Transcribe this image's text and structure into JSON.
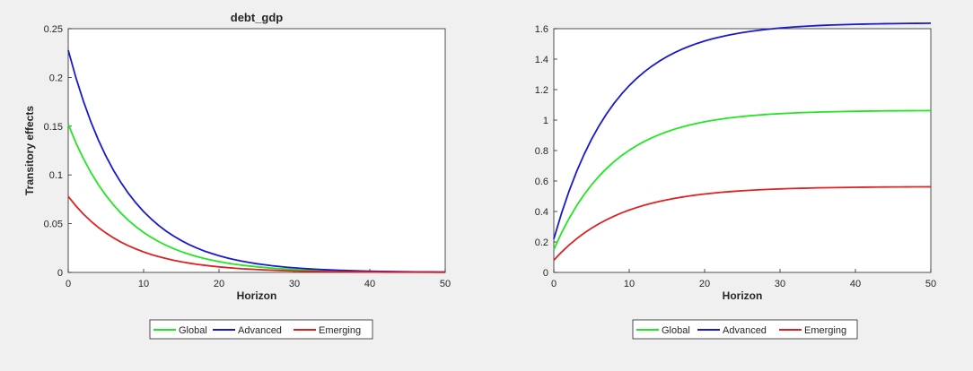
{
  "figure": {
    "background": "#f0f0f0",
    "panel_background": "#ffffff"
  },
  "legend_entries": [
    {
      "label": "Global",
      "color": "#22e622"
    },
    {
      "label": "Advanced",
      "color": "#1a1acc"
    },
    {
      "label": "Emerging",
      "color": "#dd2222"
    }
  ],
  "chart_data": [
    {
      "type": "line",
      "title": "debt_gdp",
      "xlabel": "Horizon",
      "ylabel": "Transitory effects",
      "xlim": [
        0,
        50
      ],
      "ylim": [
        0,
        0.25
      ],
      "xticks": [
        0,
        10,
        20,
        30,
        40,
        50
      ],
      "yticks": [
        0,
        0.05,
        0.1,
        0.15,
        0.2,
        0.25
      ],
      "ytick_labels": [
        "0",
        "0.05",
        "0.1",
        "0.15",
        "0.2",
        "0.25"
      ],
      "legend_position": "bottom",
      "x": [
        0,
        1,
        2,
        3,
        4,
        5,
        6,
        7,
        8,
        9,
        10,
        11,
        12,
        13,
        14,
        15,
        16,
        17,
        18,
        19,
        20,
        21,
        22,
        23,
        24,
        25,
        26,
        27,
        28,
        29,
        30,
        31,
        32,
        33,
        34,
        35,
        36,
        37,
        38,
        39,
        40,
        41,
        42,
        43,
        44,
        45,
        46,
        47,
        48,
        49,
        50
      ],
      "series": [
        {
          "name": "Global",
          "color": "#22e622",
          "values": [
            0.152,
            0.1333,
            0.117,
            0.1026,
            0.09,
            0.079,
            0.0693,
            0.0608,
            0.0533,
            0.0468,
            0.041,
            0.036,
            0.0316,
            0.0277,
            0.0243,
            0.0213,
            0.0187,
            0.0164,
            0.0144,
            0.0126,
            0.0111,
            0.0097,
            0.0085,
            0.0075,
            0.0066,
            0.0058,
            0.0051,
            0.0044,
            0.0039,
            0.0034,
            0.003,
            0.0026,
            0.0023,
            0.002,
            0.0018,
            0.0016,
            0.0014,
            0.0012,
            0.0011,
            0.0009,
            0.0008,
            0.0007,
            0.0006,
            0.0006,
            0.0005,
            0.0004,
            0.0004,
            0.0003,
            0.0003,
            0.0003,
            0.0002
          ]
        },
        {
          "name": "Advanced",
          "color": "#1a1acc",
          "values": [
            0.228,
            0.2003,
            0.176,
            0.1546,
            0.1358,
            0.1193,
            0.1048,
            0.0921,
            0.0809,
            0.0711,
            0.0624,
            0.0549,
            0.0482,
            0.0423,
            0.0372,
            0.0327,
            0.0287,
            0.0252,
            0.0221,
            0.0195,
            0.0171,
            0.015,
            0.0132,
            0.0116,
            0.0102,
            0.0089,
            0.0079,
            0.0069,
            0.0061,
            0.0053,
            0.0047,
            0.0041,
            0.0036,
            0.0032,
            0.0028,
            0.0025,
            0.0022,
            0.0019,
            0.0017,
            0.0015,
            0.0013,
            0.0011,
            0.001,
            0.0009,
            0.0008,
            0.0007,
            0.0006,
            0.0005,
            0.0005,
            0.0004,
            0.0004
          ]
        },
        {
          "name": "Emerging",
          "color": "#dd2222",
          "values": [
            0.078,
            0.0684,
            0.06,
            0.0526,
            0.0461,
            0.0405,
            0.0355,
            0.0311,
            0.0273,
            0.024,
            0.021,
            0.0184,
            0.0162,
            0.0142,
            0.0124,
            0.0109,
            0.0096,
            0.0084,
            0.0074,
            0.0065,
            0.0057,
            0.005,
            0.0044,
            0.0038,
            0.0034,
            0.003,
            0.0026,
            0.0023,
            0.002,
            0.0017,
            0.0015,
            0.0013,
            0.0012,
            0.001,
            0.0009,
            0.0008,
            0.0007,
            0.0006,
            0.0005,
            0.0005,
            0.0004,
            0.0004,
            0.0003,
            0.0003,
            0.0003,
            0.0002,
            0.0002,
            0.0002,
            0.0002,
            0.0001,
            0.0001
          ]
        }
      ]
    },
    {
      "type": "line",
      "title": "",
      "xlabel": "Horizon",
      "ylabel": "",
      "xlim": [
        0,
        50
      ],
      "ylim": [
        0,
        1.6
      ],
      "xticks": [
        0,
        10,
        20,
        30,
        40,
        50
      ],
      "yticks": [
        0,
        0.2,
        0.4,
        0.6,
        0.8,
        1,
        1.2,
        1.4,
        1.6
      ],
      "ytick_labels": [
        "0",
        "0.2",
        "0.4",
        "0.6",
        "0.8",
        "1",
        "1.2",
        "1.4",
        "1.6"
      ],
      "legend_position": "bottom",
      "x": [
        0,
        1,
        2,
        3,
        4,
        5,
        6,
        7,
        8,
        9,
        10,
        11,
        12,
        13,
        14,
        15,
        16,
        17,
        18,
        19,
        20,
        21,
        22,
        23,
        24,
        25,
        26,
        27,
        28,
        29,
        30,
        31,
        32,
        33,
        34,
        35,
        36,
        37,
        38,
        39,
        40,
        41,
        42,
        43,
        44,
        45,
        46,
        47,
        48,
        49,
        50
      ],
      "series": [
        {
          "name": "Global",
          "color": "#22e622",
          "values": [
            0.15,
            0.2574,
            0.3521,
            0.4357,
            0.5095,
            0.5746,
            0.632,
            0.6827,
            0.7274,
            0.767,
            0.8018,
            0.8326,
            0.8598,
            0.8837,
            0.9049,
            0.9236,
            0.9401,
            0.9546,
            0.9675,
            0.9788,
            0.9888,
            0.9976,
            1.0054,
            1.0123,
            1.0183,
            1.0237,
            1.0284,
            1.0326,
            1.0363,
            1.0395,
            1.0424,
            1.0449,
            1.0471,
            1.0491,
            1.0508,
            1.0524,
            1.0537,
            1.0549,
            1.056,
            1.0569,
            1.0577,
            1.0584,
            1.0591,
            1.0596,
            1.0601,
            1.0606,
            1.061,
            1.0613,
            1.0616,
            1.0619,
            1.062
          ]
        },
        {
          "name": "Advanced",
          "color": "#1a1acc",
          "values": [
            0.22,
            0.3848,
            0.5306,
            0.6594,
            0.7732,
            0.8738,
            0.9627,
            1.0412,
            1.1106,
            1.172,
            1.2262,
            1.2741,
            1.3165,
            1.354,
            1.3871,
            1.4163,
            1.4422,
            1.4651,
            1.4853,
            1.5032,
            1.5189,
            1.5329,
            1.5452,
            1.5561,
            1.5657,
            1.5742,
            1.5817,
            1.5884,
            1.5943,
            1.5994,
            1.604,
            1.6081,
            1.6117,
            1.6148,
            1.6176,
            1.6201,
            1.6223,
            1.6242,
            1.6259,
            1.6274,
            1.6287,
            1.6299,
            1.6309,
            1.6318,
            1.6326,
            1.6333,
            1.634,
            1.6345,
            1.635,
            1.6354,
            1.6358
          ]
        },
        {
          "name": "Emerging",
          "color": "#dd2222",
          "values": [
            0.08,
            0.1321,
            0.1787,
            0.2202,
            0.2573,
            0.2904,
            0.3199,
            0.3462,
            0.3697,
            0.3907,
            0.4094,
            0.4261,
            0.441,
            0.4543,
            0.4661,
            0.4767,
            0.4861,
            0.4945,
            0.502,
            0.5087,
            0.5147,
            0.52,
            0.5248,
            0.529,
            0.5328,
            0.5361,
            0.5391,
            0.5418,
            0.5442,
            0.5463,
            0.5482,
            0.5499,
            0.5514,
            0.5527,
            0.5539,
            0.555,
            0.5559,
            0.5568,
            0.5575,
            0.5582,
            0.5588,
            0.5593,
            0.5598,
            0.5602,
            0.5606,
            0.5609,
            0.5612,
            0.5615,
            0.5617,
            0.5619,
            0.5621
          ]
        }
      ]
    }
  ]
}
